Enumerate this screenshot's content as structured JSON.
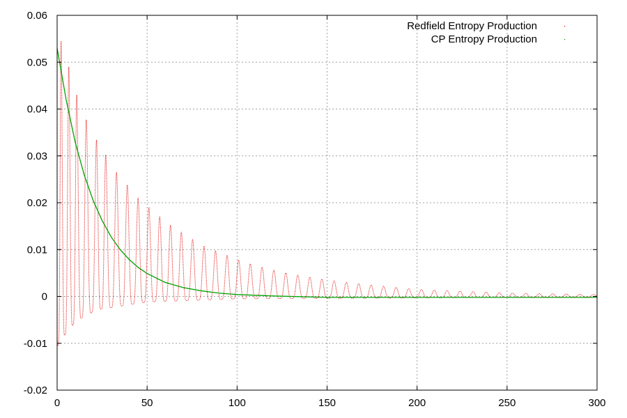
{
  "chart_data": {
    "type": "line",
    "title": "",
    "xlabel": "",
    "ylabel": "",
    "xlim": [
      0,
      300
    ],
    "ylim": [
      -0.02,
      0.06
    ],
    "grid": true,
    "legend_position": "top-right",
    "x_ticks": [
      "0",
      "50",
      "100",
      "150",
      "200",
      "250",
      "300"
    ],
    "y_ticks": [
      "-0.02",
      "-0.01",
      "0",
      "0.01",
      "0.02",
      "0.03",
      "0.04",
      "0.05",
      "0.06"
    ],
    "series": [
      {
        "name": "Redfield Entropy Production",
        "color": "#e00000",
        "style": "dotted oscillating",
        "peaks": [
          {
            "x": 2.2,
            "y": 0.0545
          },
          {
            "x": 6.5,
            "y": 0.049
          },
          {
            "x": 10.9,
            "y": 0.043
          },
          {
            "x": 16.2,
            "y": 0.0377
          },
          {
            "x": 21.9,
            "y": 0.0333
          },
          {
            "x": 27.0,
            "y": 0.0302
          },
          {
            "x": 33.0,
            "y": 0.0265
          },
          {
            "x": 39.0,
            "y": 0.0238
          },
          {
            "x": 45.0,
            "y": 0.021
          },
          {
            "x": 51.0,
            "y": 0.019
          },
          {
            "x": 57.0,
            "y": 0.017
          },
          {
            "x": 63.0,
            "y": 0.0152
          },
          {
            "x": 69.0,
            "y": 0.0137
          },
          {
            "x": 80.0,
            "y": 0.011
          },
          {
            "x": 91.0,
            "y": 0.0093
          },
          {
            "x": 102.0,
            "y": 0.0076
          },
          {
            "x": 113.0,
            "y": 0.0063
          },
          {
            "x": 125.0,
            "y": 0.0052
          },
          {
            "x": 137.0,
            "y": 0.0043
          },
          {
            "x": 150.0,
            "y": 0.0035
          },
          {
            "x": 175.0,
            "y": 0.0024
          },
          {
            "x": 200.0,
            "y": 0.0015
          },
          {
            "x": 250.0,
            "y": 0.0007
          },
          {
            "x": 300.0,
            "y": 0.0004
          }
        ],
        "troughs": [
          {
            "x": 0.5,
            "y": -0.0105
          },
          {
            "x": 6.3,
            "y": -0.007
          },
          {
            "x": 11.8,
            "y": -0.005
          },
          {
            "x": 17.5,
            "y": -0.0038
          },
          {
            "x": 23.0,
            "y": -0.0028
          },
          {
            "x": 50.0,
            "y": -0.0012
          },
          {
            "x": 100.0,
            "y": -0.0005
          },
          {
            "x": 300.0,
            "y": -0.0001
          }
        ]
      },
      {
        "name": "CP Entropy Production",
        "color": "#00a000",
        "style": "smooth decay",
        "points": [
          {
            "x": 0,
            "y": 0.053
          },
          {
            "x": 5,
            "y": 0.042
          },
          {
            "x": 10,
            "y": 0.033
          },
          {
            "x": 15,
            "y": 0.026
          },
          {
            "x": 20,
            "y": 0.0205
          },
          {
            "x": 25,
            "y": 0.0162
          },
          {
            "x": 30,
            "y": 0.0127
          },
          {
            "x": 35,
            "y": 0.01
          },
          {
            "x": 40,
            "y": 0.0079
          },
          {
            "x": 45,
            "y": 0.0062
          },
          {
            "x": 50,
            "y": 0.0049
          },
          {
            "x": 60,
            "y": 0.003
          },
          {
            "x": 70,
            "y": 0.0019
          },
          {
            "x": 80,
            "y": 0.0012
          },
          {
            "x": 90,
            "y": 0.0007
          },
          {
            "x": 100,
            "y": 0.0004
          },
          {
            "x": 120,
            "y": 0.0001
          },
          {
            "x": 150,
            "y": -0.0002
          },
          {
            "x": 200,
            "y": -0.0002
          },
          {
            "x": 300,
            "y": -0.0002
          }
        ]
      }
    ]
  }
}
